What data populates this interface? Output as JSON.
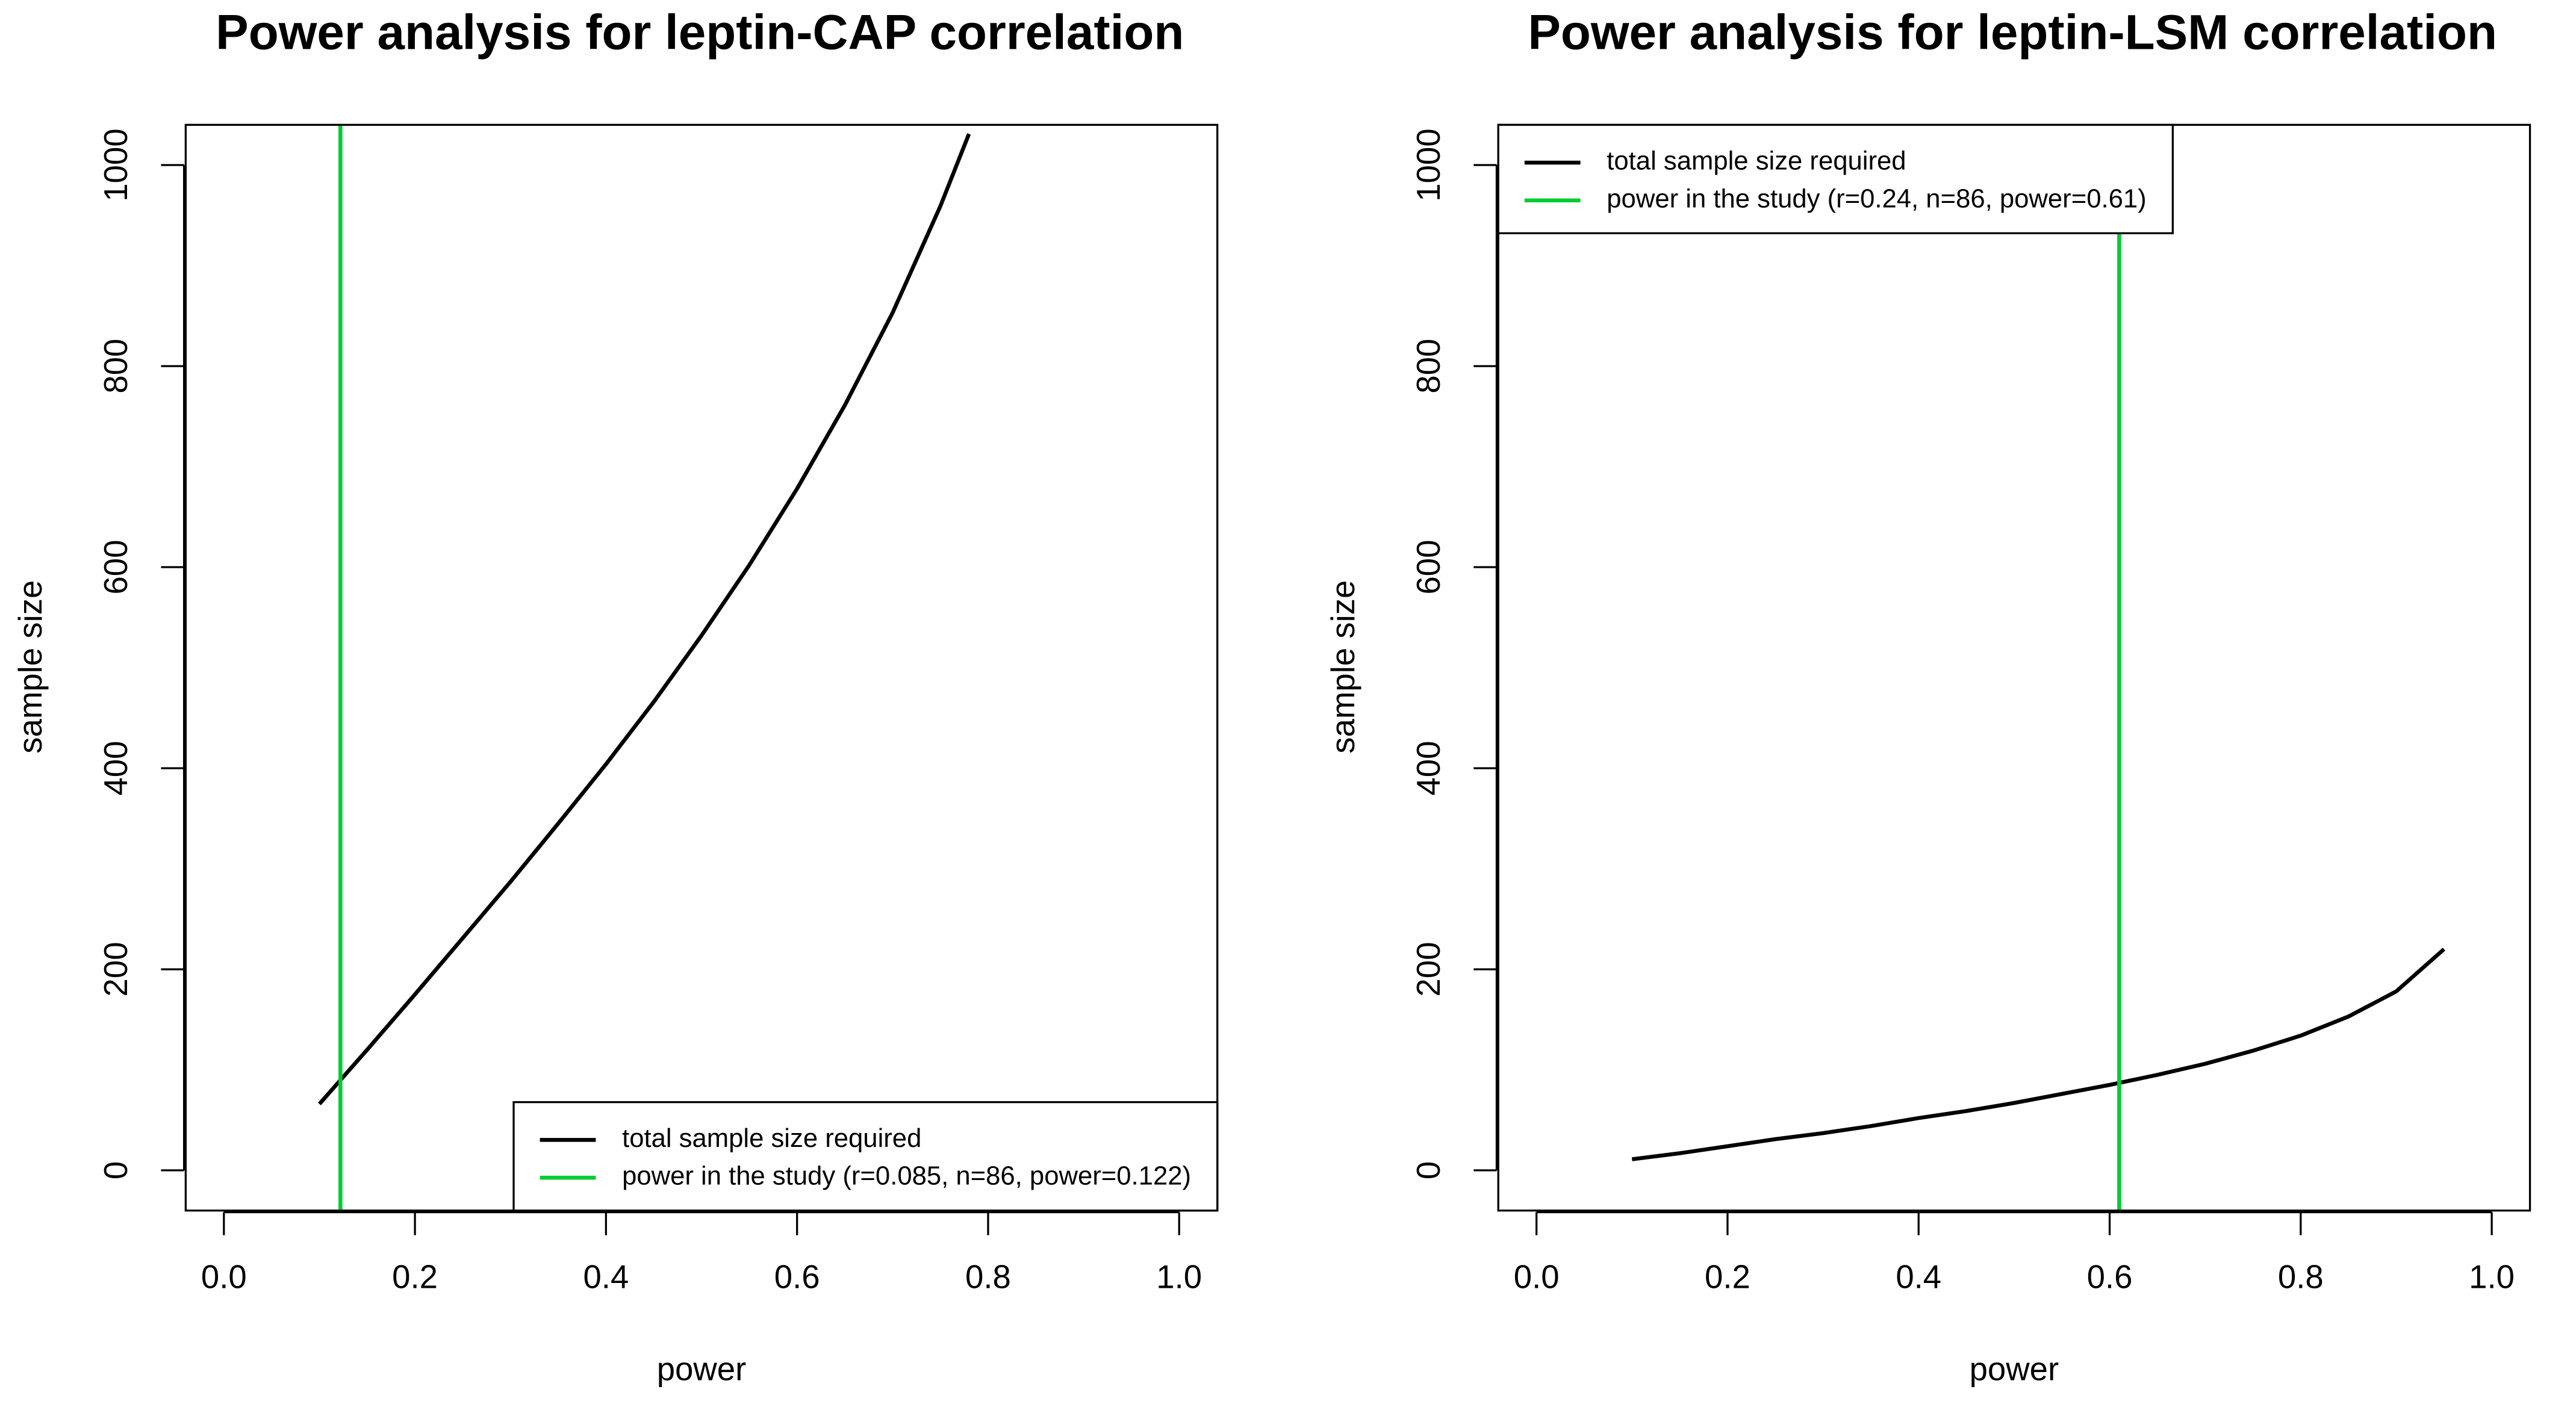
{
  "chart_data": [
    {
      "type": "line",
      "title": "Power analysis for leptin-CAP correlation",
      "xlabel": "power",
      "ylabel": "sample size",
      "x": [
        0.1,
        0.15,
        0.2,
        0.25,
        0.3,
        0.35,
        0.4,
        0.45,
        0.5,
        0.55,
        0.6,
        0.65,
        0.7,
        0.75,
        0.78
      ],
      "series": [
        {
          "name": "total sample size required",
          "color": "#000000",
          "values": [
            66,
            120,
            175,
            231,
            287,
            345,
            404,
            466,
            532,
            602,
            678,
            761,
            853,
            959,
            1031
          ]
        }
      ],
      "vline": {
        "name": "power in the study (r=0.085, n=86, power=0.122)",
        "color": "#00cc33",
        "x": 0.122
      },
      "xlim": [
        -0.04,
        1.04
      ],
      "ylim": [
        -40,
        1040
      ],
      "xticks": [
        {
          "value": 0,
          "label": "0.0"
        },
        0.2,
        0.4,
        0.6,
        0.8,
        {
          "value": 1,
          "label": "1.0"
        }
      ],
      "yticks": [
        0,
        200,
        400,
        600,
        800,
        1000
      ],
      "legend": "bottomright"
    },
    {
      "type": "line",
      "title": "Power analysis for leptin-LSM correlation",
      "xlabel": "power",
      "ylabel": "sample size",
      "x": [
        0.1,
        0.15,
        0.2,
        0.25,
        0.3,
        0.35,
        0.4,
        0.45,
        0.5,
        0.55,
        0.6,
        0.65,
        0.7,
        0.75,
        0.8,
        0.85,
        0.9,
        0.95
      ],
      "series": [
        {
          "name": "total sample size required",
          "color": "#000000",
          "values": [
            11,
            17,
            24,
            31,
            37,
            44,
            52,
            59,
            67,
            76,
            85,
            95,
            106,
            119,
            134,
            153,
            178,
            220
          ]
        }
      ],
      "vline": {
        "name": "power in the study (r=0.24, n=86, power=0.61)",
        "color": "#00cc33",
        "x": 0.61
      },
      "xlim": [
        -0.04,
        1.04
      ],
      "ylim": [
        -40,
        1040
      ],
      "xticks": [
        {
          "value": 0,
          "label": "0.0"
        },
        0.2,
        0.4,
        0.6,
        0.8,
        {
          "value": 1,
          "label": "1.0"
        }
      ],
      "yticks": [
        0,
        200,
        400,
        600,
        800,
        1000
      ],
      "legend": "topleft"
    }
  ]
}
